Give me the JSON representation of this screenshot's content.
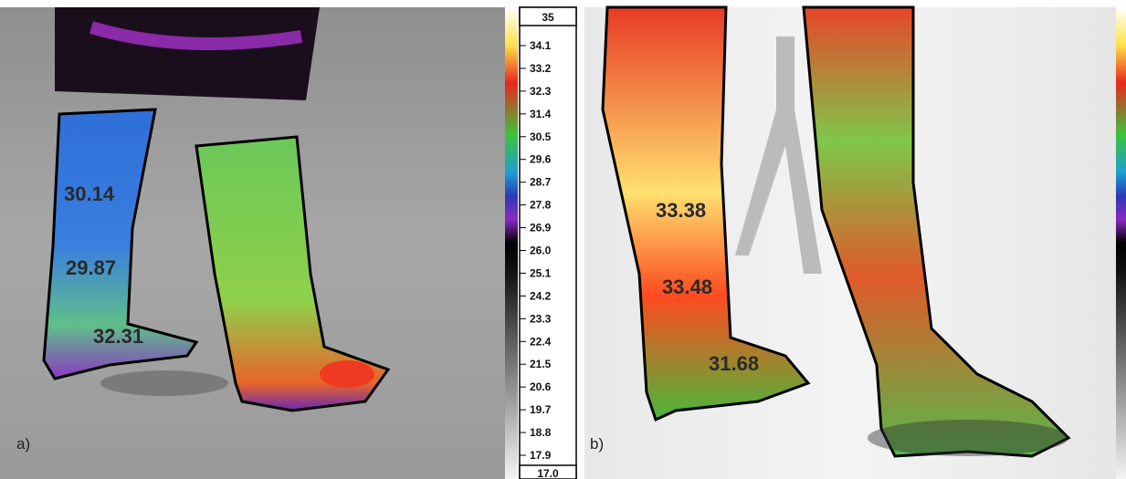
{
  "panels": [
    {
      "label": "a)",
      "annotations": [
        "30.14",
        "29.87",
        "32.31"
      ]
    },
    {
      "label": "b)",
      "annotations": [
        "33.38",
        "33.48",
        "31.68"
      ]
    }
  ],
  "scale": {
    "top": "35",
    "bottom": "17.0",
    "labels": [
      "34.1",
      "33.2",
      "32.3",
      "31.4",
      "30.5",
      "29.6",
      "28.7",
      "27.8",
      "26.9",
      "26.0",
      "25.1",
      "24.2",
      "23.3",
      "22.4",
      "21.5",
      "20.6",
      "19.7",
      "18.8",
      "17.9"
    ]
  }
}
